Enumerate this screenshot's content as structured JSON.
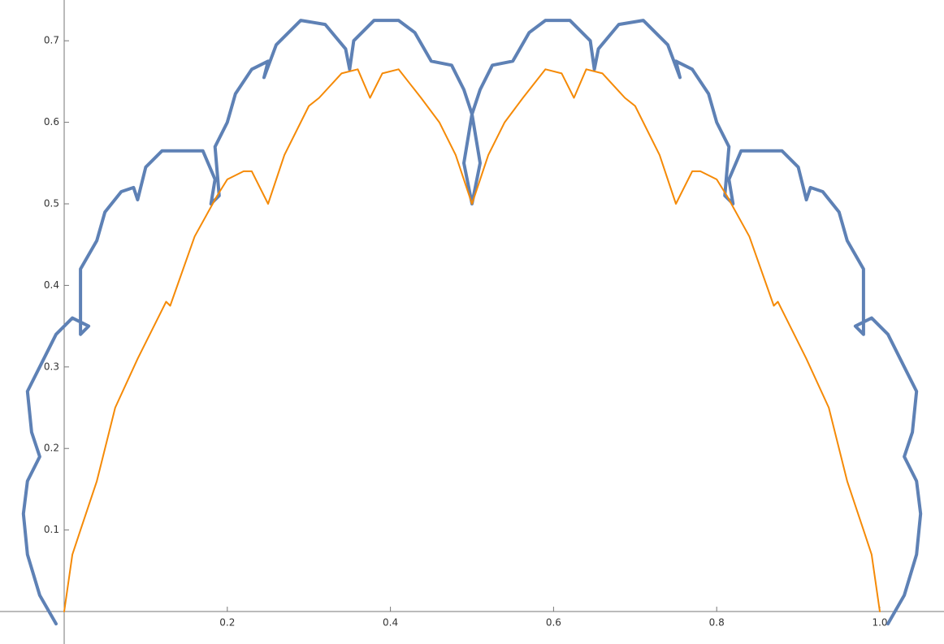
{
  "chart_data": {
    "type": "line",
    "xlim": [
      -0.0787,
      1.0787
    ],
    "ylim": [
      -0.0398,
      0.75
    ],
    "xticks": [
      0.2,
      0.4,
      0.6,
      0.8,
      {
        "value": 1,
        "label": "1.0"
      }
    ],
    "yticks": [
      0.1,
      0.2,
      0.3,
      0.4,
      0.5,
      0.6,
      0.7
    ],
    "series": [
      {
        "color": "#5e81b5",
        "x": [
          -0.01,
          -0.03,
          -0.045,
          -0.05,
          -0.045,
          -0.03,
          -0.04,
          -0.045,
          -0.03,
          -0.01,
          0.01,
          0.03,
          0.02,
          0.02,
          0.02,
          0.04,
          0.05,
          0.07,
          0.085,
          0.09,
          0.1,
          0.12,
          0.15,
          0.17,
          0.185,
          0.18,
          0.19,
          0.185,
          0.2,
          0.21,
          0.23,
          0.25,
          0.245,
          0.26,
          0.29,
          0.32,
          0.345,
          0.35,
          0.355,
          0.38,
          0.41,
          0.43,
          0.45,
          0.475,
          0.49,
          0.5,
          0.49,
          0.5,
          0.51,
          0.5,
          0.51,
          0.525,
          0.55,
          0.57,
          0.59,
          0.62,
          0.645,
          0.65,
          0.655,
          0.68,
          0.71,
          0.74,
          0.755,
          0.75,
          0.77,
          0.79,
          0.8,
          0.815,
          0.81,
          0.82,
          0.815,
          0.83,
          0.85,
          0.88,
          0.9,
          0.91,
          0.915,
          0.93,
          0.95,
          0.96,
          0.98,
          0.98,
          0.98,
          0.97,
          0.99,
          1.01,
          1.03,
          1.045,
          1.04,
          1.03,
          1.045,
          1.05,
          1.045,
          1.03,
          1.01
        ],
        "values": [
          -0.015,
          0.02,
          0.07,
          0.12,
          0.16,
          0.19,
          0.22,
          0.27,
          0.3,
          0.34,
          0.36,
          0.35,
          0.34,
          0.38,
          0.42,
          0.455,
          0.49,
          0.515,
          0.52,
          0.505,
          0.545,
          0.565,
          0.565,
          0.565,
          0.53,
          0.5,
          0.51,
          0.57,
          0.6,
          0.635,
          0.665,
          0.675,
          0.655,
          0.695,
          0.725,
          0.72,
          0.69,
          0.665,
          0.7,
          0.725,
          0.725,
          0.71,
          0.675,
          0.67,
          0.64,
          0.61,
          0.55,
          0.5,
          0.55,
          0.61,
          0.64,
          0.67,
          0.675,
          0.71,
          0.725,
          0.725,
          0.7,
          0.665,
          0.69,
          0.72,
          0.725,
          0.695,
          0.655,
          0.675,
          0.665,
          0.635,
          0.6,
          0.57,
          0.51,
          0.5,
          0.53,
          0.565,
          0.565,
          0.565,
          0.545,
          0.505,
          0.52,
          0.515,
          0.49,
          0.455,
          0.42,
          0.38,
          0.34,
          0.35,
          0.36,
          0.34,
          0.3,
          0.27,
          0.22,
          0.19,
          0.16,
          0.12,
          0.07,
          0.02,
          -0.015
        ]
      },
      {
        "color": "#f58a07",
        "x": [
          0,
          0.01,
          0.02,
          0.04,
          0.0625,
          0.09,
          0.125,
          0.13,
          0.16,
          0.1875,
          0.2,
          0.22,
          0.23,
          0.25,
          0.27,
          0.3,
          0.3125,
          0.34,
          0.36,
          0.375,
          0.39,
          0.41,
          0.4375,
          0.46,
          0.48,
          0.5,
          0.52,
          0.54,
          0.5625,
          0.59,
          0.61,
          0.625,
          0.64,
          0.66,
          0.6875,
          0.7,
          0.73,
          0.75,
          0.77,
          0.78,
          0.8,
          0.8125,
          0.84,
          0.87,
          0.875,
          0.91,
          0.9375,
          0.96,
          0.98,
          0.99,
          1
        ],
        "values": [
          0,
          0.07,
          0.1,
          0.16,
          0.25,
          0.31,
          0.38,
          0.375,
          0.46,
          0.51,
          0.53,
          0.54,
          0.54,
          0.5,
          0.56,
          0.62,
          0.63,
          0.66,
          0.665,
          0.63,
          0.66,
          0.665,
          0.63,
          0.6,
          0.56,
          0.5,
          0.56,
          0.6,
          0.63,
          0.665,
          0.66,
          0.63,
          0.665,
          0.66,
          0.63,
          0.62,
          0.56,
          0.5,
          0.54,
          0.54,
          0.53,
          0.51,
          0.46,
          0.375,
          0.38,
          0.31,
          0.25,
          0.16,
          0.1,
          0.07,
          0
        ]
      }
    ]
  }
}
